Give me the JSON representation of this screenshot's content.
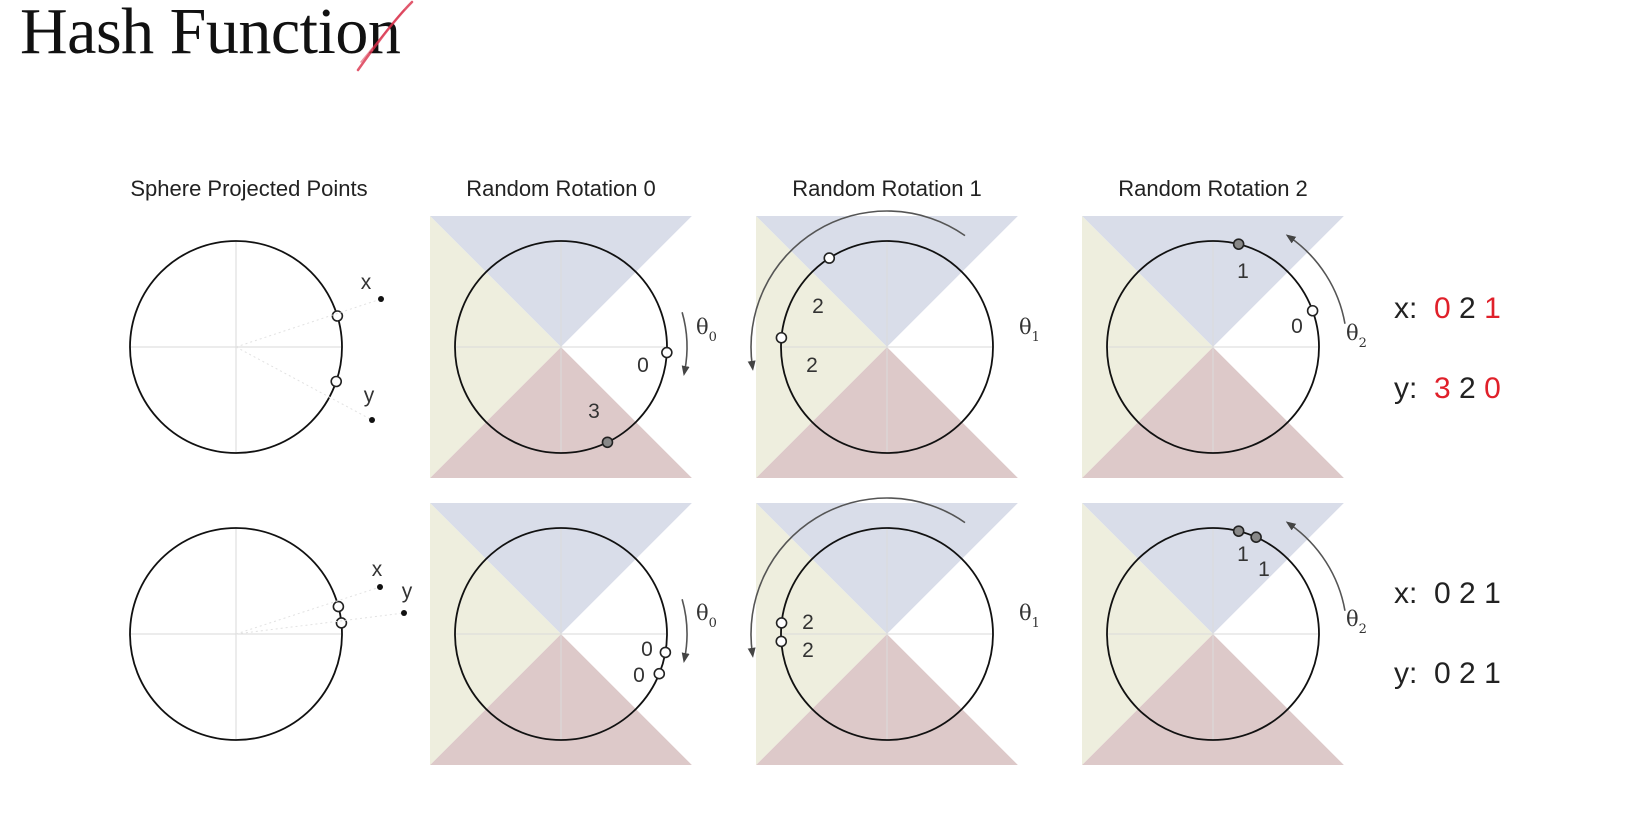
{
  "title": "Hash Function",
  "column_headers": [
    "Sphere Projected Points",
    "Random Rotation 0",
    "Random Rotation 1",
    "Random Rotation 2"
  ],
  "point_labels": {
    "x": "x",
    "y": "y"
  },
  "rotation_labels": {
    "theta": "θ",
    "subscripts": [
      "0",
      "1",
      "2"
    ]
  },
  "rows": [
    {
      "bucket_labels": {
        "rotation_0": [
          "0",
          "3"
        ],
        "rotation_1": [
          "2",
          "2"
        ],
        "rotation_2": [
          "1",
          "0"
        ]
      },
      "codes": [
        {
          "label": "x:",
          "digits": [
            {
              "d": "0",
              "red": true
            },
            {
              "d": "2",
              "red": false
            },
            {
              "d": "1",
              "red": true
            }
          ]
        },
        {
          "label": "y:",
          "digits": [
            {
              "d": "3",
              "red": true
            },
            {
              "d": "2",
              "red": false
            },
            {
              "d": "0",
              "red": true
            }
          ]
        }
      ]
    },
    {
      "bucket_labels": {
        "rotation_0": [
          "0",
          "0"
        ],
        "rotation_1": [
          "2",
          "2"
        ],
        "rotation_2": [
          "1",
          "1"
        ]
      },
      "codes": [
        {
          "label": "x:",
          "digits": [
            {
              "d": "0",
              "red": false
            },
            {
              "d": "2",
              "red": false
            },
            {
              "d": "1",
              "red": false
            }
          ]
        },
        {
          "label": "y:",
          "digits": [
            {
              "d": "0",
              "red": false
            },
            {
              "d": "2",
              "red": false
            },
            {
              "d": "1",
              "red": false
            }
          ]
        }
      ]
    }
  ],
  "colors": {
    "bucket_top": "#d9dde9",
    "bucket_bottom": "#ddc9c9",
    "bucket_left": "#eeeede",
    "bucket_right": "#ffffff",
    "highlight_red": "#e0202a",
    "pen_mark": "#d9304a"
  }
}
